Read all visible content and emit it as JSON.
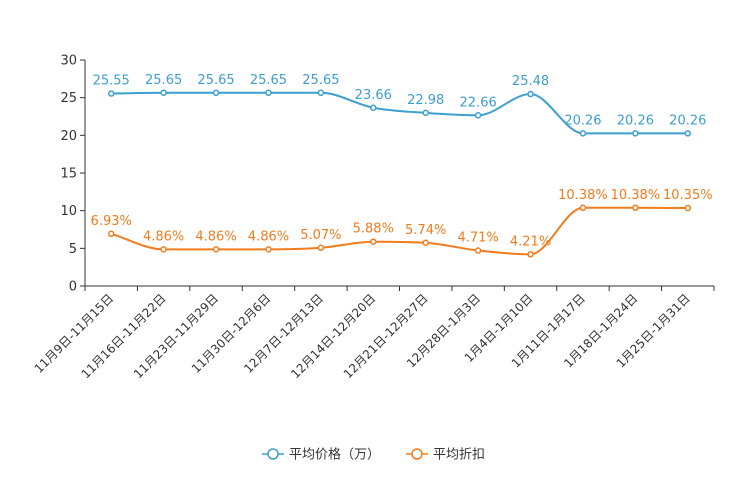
{
  "chart_data": {
    "type": "line",
    "categories": [
      "11月9日-11月15日",
      "11月16日-11月22日",
      "11月23日-11月29日",
      "11月30日-12月6日",
      "12月7日-12月13日",
      "12月14日-12月20日",
      "12月21日-12月27日",
      "12月28日-1月3日",
      "1月4日-1月10日",
      "1月11日-1月17日",
      "1月18日-1月24日",
      "1月25日-1月31日"
    ],
    "ylim": [
      0,
      30
    ],
    "yticks": [
      0,
      5,
      10,
      15,
      20,
      25,
      30
    ],
    "series": [
      {
        "name": "平均价格（万）",
        "color": "#3c9fd0",
        "values": [
          25.55,
          25.65,
          25.65,
          25.65,
          25.65,
          23.66,
          22.98,
          22.66,
          25.48,
          20.26,
          20.26,
          20.26
        ],
        "labels": [
          "25.55",
          "25.65",
          "25.65",
          "25.65",
          "25.65",
          "23.66",
          "22.98",
          "22.66",
          "25.48",
          "20.26",
          "20.26",
          "20.26"
        ]
      },
      {
        "name": "平均折扣",
        "color": "#f07c1e",
        "values": [
          6.93,
          4.86,
          4.86,
          4.86,
          5.07,
          5.88,
          5.74,
          4.71,
          4.21,
          10.38,
          10.38,
          10.35
        ],
        "labels": [
          "6.93%",
          "4.86%",
          "4.86%",
          "4.86%",
          "5.07%",
          "5.88%",
          "5.74%",
          "4.71%",
          "4.21%",
          "10.38%",
          "10.38%",
          "10.35%"
        ]
      }
    ],
    "legend_position": "bottom-center",
    "grid": false
  }
}
